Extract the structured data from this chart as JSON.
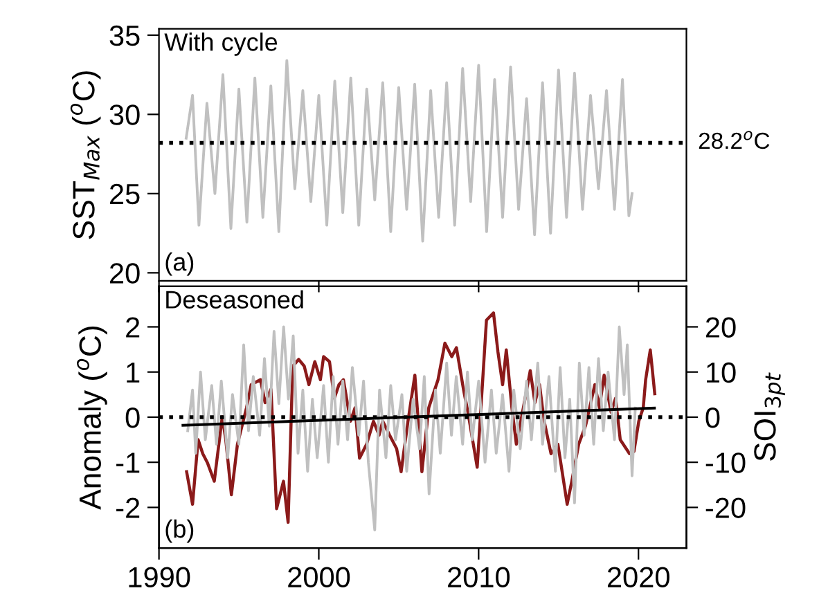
{
  "chart_data": [
    {
      "type": "line",
      "ylabel": "SST$_{Max}$ ($^{o}$C)",
      "annotations": [
        "With cycle",
        "(a)"
      ],
      "xlim": [
        1990,
        2023
      ],
      "xticks": [
        1990,
        2000,
        2010,
        2020
      ],
      "ylim": [
        19.5,
        35.4
      ],
      "yticks": [
        20,
        25,
        30,
        35
      ],
      "tick_labels": "y",
      "ref_lines": [
        {
          "axis": "y",
          "value": 28.2,
          "label": "28.2$^{o}$C",
          "color": "#000000",
          "line_style": "dotted"
        }
      ],
      "series": [
        {
          "color": "#c0c0c0",
          "x": [
            1991.7,
            1992.1,
            1992.5,
            1993.0,
            1993.5,
            1994.0,
            1994.5,
            1995.0,
            1995.5,
            1996.0,
            1996.5,
            1997.0,
            1997.5,
            1998.0,
            1998.5,
            1999.0,
            1999.5,
            2000.0,
            2000.5,
            2001.0,
            2001.5,
            2002.0,
            2002.5,
            2003.0,
            2003.5,
            2004.0,
            2004.5,
            2005.0,
            2005.5,
            2006.0,
            2006.5,
            2007.0,
            2007.5,
            2008.0,
            2008.5,
            2009.0,
            2009.5,
            2010.0,
            2010.5,
            2011.0,
            2011.5,
            2012.0,
            2012.5,
            2013.0,
            2013.5,
            2014.0,
            2014.5,
            2015.0,
            2015.5,
            2016.0,
            2016.5,
            2017.0,
            2017.5,
            2018.0,
            2018.5,
            2019.0,
            2019.4,
            2019.6
          ],
          "values": [
            28.5,
            31.2,
            23.0,
            30.7,
            25.0,
            32.5,
            22.8,
            31.6,
            23.2,
            32.3,
            23.5,
            31.8,
            22.6,
            33.4,
            25.3,
            31.5,
            24.5,
            31.2,
            23.0,
            32.1,
            23.8,
            32.3,
            23.0,
            31.6,
            24.6,
            32.0,
            22.6,
            31.7,
            24.0,
            31.9,
            22.0,
            31.5,
            23.5,
            32.0,
            23.0,
            32.9,
            24.5,
            33.1,
            22.6,
            32.2,
            23.5,
            33.0,
            24.0,
            31.0,
            22.4,
            32.0,
            22.5,
            32.8,
            23.5,
            32.6,
            24.0,
            31.2,
            25.3,
            31.5,
            24.0,
            32.2,
            23.6,
            25.0
          ]
        }
      ]
    },
    {
      "type": "line",
      "ylabel": "Anomaly ($^{o}$C)",
      "y2label": "SOI$_{3pt}$",
      "annotations": [
        "Deseasoned",
        "(b)"
      ],
      "xlim": [
        1990,
        2023
      ],
      "xticks": [
        1990,
        2000,
        2010,
        2020
      ],
      "ylim": [
        -2.9,
        2.9
      ],
      "yticks": [
        -2,
        -1,
        0,
        1,
        2
      ],
      "y2lim": [
        -29,
        29
      ],
      "y2ticks": [
        -20,
        -10,
        0,
        10,
        20
      ],
      "ref_lines": [
        {
          "axis": "y",
          "value": 0,
          "color": "#000000",
          "line_style": "dotted"
        }
      ],
      "series": [
        {
          "color": "#c0c0c0",
          "x": [
            1991.8,
            1992.1,
            1992.3,
            1992.6,
            1992.9,
            1993.3,
            1993.6,
            1993.9,
            1994.3,
            1994.6,
            1995.0,
            1995.3,
            1995.6,
            1995.9,
            1996.3,
            1996.6,
            1996.9,
            1997.2,
            1997.5,
            1997.8,
            1998.1,
            1998.4,
            1998.7,
            1999.0,
            1999.3,
            1999.6,
            1999.9,
            2000.3,
            2000.6,
            2000.9,
            2001.2,
            2001.5,
            2001.8,
            2002.1,
            2002.5,
            2002.8,
            2003.1,
            2003.5,
            2003.8,
            2004.2,
            2004.5,
            2004.8,
            2005.2,
            2005.5,
            2005.9,
            2006.3,
            2006.6,
            2006.9,
            2007.3,
            2007.6,
            2008.0,
            2008.3,
            2008.6,
            2009.0,
            2009.3,
            2009.6,
            2010.0,
            2010.4,
            2010.8,
            2011.1,
            2011.5,
            2011.9,
            2012.2,
            2012.6,
            2013.0,
            2013.3,
            2013.7,
            2014.0,
            2014.4,
            2014.8,
            2015.1,
            2015.4,
            2015.7,
            2016.0,
            2016.3,
            2016.6,
            2016.9,
            2017.2,
            2017.5,
            2017.8,
            2018.1,
            2018.5,
            2018.8,
            2019.1,
            2019.3,
            2019.6,
            2019.8
          ],
          "values": [
            -0.3,
            0.6,
            -0.8,
            1.0,
            -0.5,
            0.7,
            -0.6,
            0.8,
            -0.9,
            0.5,
            -0.6,
            1.6,
            -0.3,
            0.9,
            -0.4,
            1.3,
            -0.2,
            1.9,
            0.3,
            2.0,
            0.4,
            1.8,
            -0.8,
            0.6,
            -1.2,
            0.4,
            -0.9,
            0.7,
            -1.0,
            0.9,
            -0.6,
            0.8,
            -0.5,
            1.1,
            -0.4,
            0.8,
            -1.0,
            -2.5,
            0.6,
            -0.9,
            0.7,
            -0.5,
            0.5,
            -1.2,
            0.4,
            -0.7,
            0.9,
            -1.7,
            0.6,
            -0.8,
            1.2,
            -0.4,
            0.9,
            -0.6,
            1.0,
            -0.5,
            0.8,
            -1.0,
            0.6,
            -0.8,
            0.5,
            -1.2,
            0.6,
            -0.7,
            0.8,
            -0.5,
            1.2,
            -0.6,
            0.9,
            -1.2,
            1.1,
            -0.9,
            0.4,
            -1.9,
            1.2,
            -0.4,
            1.1,
            -0.6,
            1.3,
            -0.3,
            1.0,
            -0.5,
            2.0,
            0.5,
            1.6,
            -1.3,
            0.2
          ]
        },
        {
          "color": "#8b1a1a",
          "axis": "y2",
          "x": [
            1991.73,
            1992.1,
            1992.45,
            1992.74,
            1993.03,
            1993.46,
            1993.96,
            1994.18,
            1994.53,
            1994.91,
            1995.48,
            1995.77,
            1996.35,
            1996.64,
            1997.01,
            1997.36,
            1997.79,
            1998.08,
            1998.37,
            1998.74,
            1999.09,
            1999.38,
            1999.75,
            2000.1,
            2000.3,
            2000.67,
            2000.97,
            2001.26,
            2001.54,
            2001.98,
            2002.27,
            2002.55,
            2002.99,
            2003.42,
            2003.77,
            2004.0,
            2004.43,
            2004.87,
            2005.15,
            2005.58,
            2006.01,
            2006.45,
            2006.88,
            2007.46,
            2007.89,
            2008.32,
            2008.61,
            2009.05,
            2009.33,
            2009.91,
            2010.49,
            2010.93,
            2011.21,
            2011.5,
            2011.73,
            2012.08,
            2012.36,
            2012.8,
            2013.23,
            2013.52,
            2013.81,
            2014.1,
            2014.53,
            2014.96,
            2015.54,
            2015.83,
            2016.26,
            2016.69,
            2017.27,
            2017.56,
            2017.85,
            2018.29,
            2018.57,
            2018.86,
            2019.44,
            2019.72,
            2020.02,
            2020.3,
            2020.45,
            2020.74,
            2021.02
          ],
          "values": [
            -12.1,
            -19.3,
            -5.0,
            -8.1,
            -10.1,
            -14.2,
            0.1,
            -5.0,
            -17.2,
            -6.0,
            2.1,
            7.2,
            8.3,
            3.2,
            6.2,
            -20.3,
            -14.2,
            -23.3,
            11.3,
            12.8,
            11.3,
            7.2,
            12.3,
            8.3,
            13.4,
            12.3,
            4.2,
            7.2,
            8.3,
            -0.9,
            2.1,
            -9.1,
            -6.0,
            -0.9,
            -4.0,
            -0.9,
            -4.0,
            -7.0,
            -12.1,
            -0.9,
            9.3,
            -12.1,
            2.1,
            8.3,
            16.4,
            13.4,
            15.4,
            6.2,
            1.1,
            -11.1,
            21.5,
            23.1,
            14.4,
            7.2,
            14.9,
            2.1,
            -6.0,
            2.1,
            10.3,
            3.2,
            7.2,
            -0.9,
            -8.1,
            -6.0,
            -19.3,
            -14.2,
            -6.0,
            -1.9,
            7.2,
            2.1,
            9.3,
            1.1,
            4.2,
            -5.0,
            -8.1,
            -7.6,
            -0.9,
            2.1,
            8.3,
            14.9,
            5.2
          ]
        },
        {
          "color": "#000000",
          "x": [
            1991.5,
            2021.0
          ],
          "values": [
            -0.18,
            0.2
          ]
        }
      ]
    }
  ]
}
